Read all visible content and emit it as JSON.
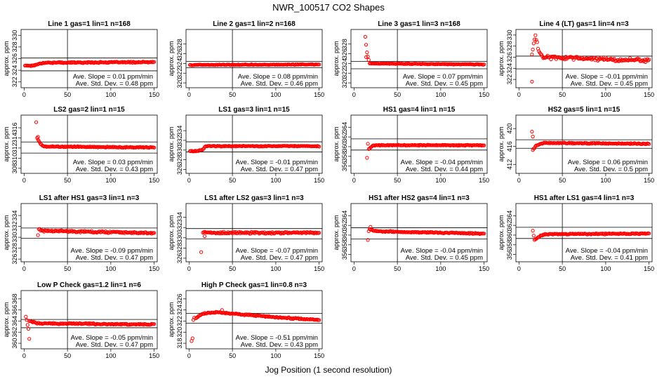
{
  "figure": {
    "title": "NWR_100517  CO2 Shapes",
    "xlabel": "Jog Position (1 second resolution)"
  },
  "colors": {
    "points": "#ff0000",
    "axis": "#000000"
  },
  "chart_data": [
    {
      "type": "scatter",
      "title": "Line 1 gas=1 lin=1 n=168",
      "ylabel": "approx. ppm",
      "xlim": [
        0,
        150
      ],
      "ylim": [
        321,
        331
      ],
      "xticks": [
        0,
        50,
        100,
        150
      ],
      "yticks": [
        322,
        324,
        326,
        328,
        330
      ],
      "hlines": [
        326.1,
        323.9
      ],
      "vline": 50,
      "slope_text": "Ave. Slope =  0.01  ppm/min",
      "std_text": "Ave. Std. Dev. =  0.48  ppm",
      "shape": {
        "start": 1,
        "start_val": 324.8,
        "segments": [
          [
            10,
            324.8
          ],
          [
            22,
            325.3
          ],
          [
            150,
            325.4
          ]
        ],
        "noise": 0.12
      },
      "outliers": []
    },
    {
      "type": "scatter",
      "title": "Line 2 gas=1 lin=2 n=168",
      "ylabel": "approx. ppm",
      "xlim": [
        0,
        150
      ],
      "ylim": [
        319,
        331
      ],
      "xticks": [
        0,
        50,
        100,
        150
      ],
      "yticks": [
        320,
        322,
        324,
        326,
        328
      ],
      "hlines": [
        324.4,
        323.1
      ],
      "vline": 50,
      "slope_text": "Ave. Slope =  0.08  ppm/min",
      "std_text": "Ave. Std. Dev. =  0.46  ppm",
      "shape": {
        "start": 1,
        "start_val": 323.7,
        "segments": [
          [
            150,
            323.8
          ]
        ],
        "noise": 0.1
      },
      "outliers": []
    },
    {
      "type": "scatter",
      "title": "Line 3 gas=1 lin=3 n=168",
      "ylabel": "approx. ppm",
      "xlim": [
        0,
        150
      ],
      "ylim": [
        319,
        331
      ],
      "xticks": [
        0,
        50,
        100,
        150
      ],
      "yticks": [
        320,
        322,
        324,
        326,
        328
      ],
      "hlines": [
        324.4,
        322.9
      ],
      "vline": 50,
      "slope_text": "Ave. Slope =  0.07  ppm/min",
      "std_text": "Ave. Std. Dev. =  0.45  ppm",
      "shape": {
        "start": 13,
        "start_val": 329.5,
        "segments": [
          [
            15,
            326.2
          ],
          [
            18,
            324.0
          ],
          [
            150,
            323.8
          ]
        ],
        "noise": 0.1
      },
      "outliers": [
        [
          14,
          325.3
        ]
      ]
    },
    {
      "type": "scatter",
      "title": "Line 4 (LT) gas=1 lin=4 n=3",
      "ylabel": "approx. ppm",
      "xlim": [
        0,
        150
      ],
      "ylim": [
        320.5,
        331
      ],
      "xticks": [
        0,
        50,
        100,
        150
      ],
      "yticks": [
        322,
        324,
        326,
        328,
        330
      ],
      "hlines": [
        326.2,
        323.9
      ],
      "vline": 50,
      "slope_text": "Ave. Slope =  -0.01  ppm/min",
      "std_text": "Ave. Std. Dev. =  0.45  ppm",
      "shape": {
        "start": 15,
        "start_val": 326.5,
        "segments": [
          [
            19,
            330.2
          ],
          [
            23,
            327.0
          ],
          [
            28,
            326.0
          ],
          [
            150,
            325.4
          ]
        ],
        "noise": 0.35
      },
      "outliers": [
        [
          15,
          321.6
        ]
      ]
    },
    {
      "type": "scatter",
      "title": "LS2 gas=2 lin=1 n=15",
      "ylabel": "approx. ppm",
      "xlim": [
        0,
        150
      ],
      "ylim": [
        307,
        318.5
      ],
      "xticks": [
        0,
        50,
        100,
        150
      ],
      "yticks": [
        308,
        310,
        312,
        314,
        316
      ],
      "hlines": [
        313.2,
        311.0
      ],
      "vline": 50,
      "slope_text": "Ave. Slope =  0.03  ppm/min",
      "std_text": "Ave. Std. Dev. =  0.43  ppm",
      "shape": {
        "start": 15,
        "start_val": 314.0,
        "segments": [
          [
            19,
            312.8
          ],
          [
            23,
            312.3
          ],
          [
            150,
            312.1
          ]
        ],
        "noise": 0.12
      },
      "outliers": [
        [
          14,
          317.1
        ],
        [
          16,
          314.2
        ]
      ]
    },
    {
      "type": "scatter",
      "title": "LS1 gas=3 lin=1 n=15",
      "ylabel": "approx. ppm",
      "xlim": [
        0,
        150
      ],
      "ylim": [
        325.2,
        337.2
      ],
      "xticks": [
        0,
        50,
        100,
        150
      ],
      "yticks": [
        326,
        328,
        330,
        332,
        334
      ],
      "hlines": [
        331.7,
        329.6
      ],
      "vline": 50,
      "slope_text": "Ave. Slope =  -0.01  ppm/min",
      "std_text": "Ave. Std. Dev. =  0.47  ppm",
      "shape": {
        "start": 1,
        "start_val": 329.8,
        "segments": [
          [
            10,
            329.8
          ],
          [
            16,
            330.1
          ],
          [
            19,
            330.8
          ],
          [
            150,
            330.8
          ]
        ],
        "noise": 0.12
      },
      "outliers": []
    },
    {
      "type": "scatter",
      "title": "HS1 gas=4 lin=1 n=15",
      "ylabel": "approx. ppm",
      "xlim": [
        0,
        150
      ],
      "ylim": [
        354.5,
        366.5
      ],
      "xticks": [
        0,
        50,
        100,
        150
      ],
      "yticks": [
        356,
        358,
        360,
        362,
        364
      ],
      "hlines": [
        361.6,
        359.3
      ],
      "vline": 50,
      "slope_text": "Ave. Slope =  -0.04  ppm/min",
      "std_text": "Ave. Std. Dev. =  0.44  ppm",
      "shape": {
        "start": 17,
        "start_val": 359.5,
        "segments": [
          [
            22,
            360.3
          ],
          [
            150,
            360.3
          ]
        ],
        "noise": 0.12
      },
      "outliers": [
        [
          15,
          357.7
        ],
        [
          16,
          360.6
        ]
      ]
    },
    {
      "type": "scatter",
      "title": "HS2 gas=5 lin=1 n=15",
      "ylabel": "approx. ppm",
      "xlim": [
        0,
        150
      ],
      "ylim": [
        410,
        423
      ],
      "xticks": [
        0,
        50,
        100,
        150
      ],
      "yticks": [
        412,
        416,
        420
      ],
      "hlines": [
        417.5,
        415.6
      ],
      "vline": 50,
      "slope_text": "Ave. Slope =  0.06  ppm/min",
      "std_text": "Ave. Std. Dev. =  0.5  ppm",
      "shape": {
        "start": 16,
        "start_val": 415.2,
        "segments": [
          [
            20,
            416.2
          ],
          [
            28,
            416.8
          ],
          [
            150,
            416.6
          ]
        ],
        "noise": 0.14
      },
      "outliers": [
        [
          15,
          419.3
        ],
        [
          16,
          418.2
        ]
      ]
    },
    {
      "type": "scatter",
      "title": "LS1 after HS1 gas=3 lin=1 n=3",
      "ylabel": "approx. ppm",
      "xlim": [
        0,
        150
      ],
      "ylim": [
        325.5,
        336.2
      ],
      "xticks": [
        0,
        50,
        100,
        150
      ],
      "yticks": [
        326,
        328,
        330,
        332,
        334
      ],
      "hlines": [
        331.7,
        329.8
      ],
      "vline": 50,
      "slope_text": "Ave. Slope =  -0.09  ppm/min",
      "std_text": "Ave. Std. Dev. =  0.47  ppm",
      "shape": {
        "start": 17,
        "start_val": 331.5,
        "segments": [
          [
            22,
            331.2
          ],
          [
            150,
            330.8
          ]
        ],
        "noise": 0.18
      },
      "outliers": [
        [
          16,
          330.4
        ]
      ]
    },
    {
      "type": "scatter",
      "title": "LS1 after LS2 gas=3 lin=1 n=3",
      "ylabel": "approx. ppm",
      "xlim": [
        0,
        150
      ],
      "ylim": [
        325.3,
        336.7
      ],
      "xticks": [
        0,
        50,
        100,
        150
      ],
      "yticks": [
        326,
        328,
        330,
        332,
        334
      ],
      "hlines": [
        331.8,
        329.8
      ],
      "vline": 50,
      "slope_text": "Ave. Slope =  -0.07  ppm/min",
      "std_text": "Ave. Std. Dev. =  0.47  ppm",
      "shape": {
        "start": 16,
        "start_val": 331.0,
        "segments": [
          [
            150,
            331.0
          ]
        ],
        "noise": 0.25
      },
      "outliers": [
        [
          14,
          327.2
        ],
        [
          18,
          330.3
        ]
      ]
    },
    {
      "type": "scatter",
      "title": "HS1 after HS2 gas=4 lin=1 n=3",
      "ylabel": "approx. ppm",
      "xlim": [
        0,
        150
      ],
      "ylim": [
        354.5,
        366.5
      ],
      "xticks": [
        0,
        50,
        100,
        150
      ],
      "yticks": [
        356,
        358,
        360,
        362,
        364
      ],
      "hlines": [
        361.5,
        359.2
      ],
      "vline": 50,
      "slope_text": "Ave. Slope =  -0.04  ppm/min",
      "std_text": "Ave. Std. Dev. =  0.45  ppm",
      "shape": {
        "start": 18,
        "start_val": 361.2,
        "segments": [
          [
            24,
            360.8
          ],
          [
            150,
            360.3
          ]
        ],
        "noise": 0.15
      },
      "outliers": [
        [
          16,
          359.0
        ],
        [
          17,
          360.8
        ],
        [
          19,
          361.7
        ]
      ]
    },
    {
      "type": "scatter",
      "title": "HS1 after LS1 gas=4 lin=1 n=3",
      "ylabel": "approx. ppm",
      "xlim": [
        0,
        150
      ],
      "ylim": [
        354.5,
        366.5
      ],
      "xticks": [
        0,
        50,
        100,
        150
      ],
      "yticks": [
        356,
        358,
        360,
        362,
        364
      ],
      "hlines": [
        361.6,
        359.3
      ],
      "vline": 50,
      "slope_text": "Ave. Slope =  -0.04  ppm/min",
      "std_text": "Ave. Std. Dev. =  0.41  ppm",
      "shape": {
        "start": 18,
        "start_val": 359.0,
        "segments": [
          [
            24,
            359.8
          ],
          [
            30,
            360.2
          ],
          [
            150,
            360.3
          ]
        ],
        "noise": 0.14
      },
      "outliers": [
        [
          16,
          360.9
        ],
        [
          17,
          359.9
        ]
      ]
    },
    {
      "type": "scatter",
      "title": "Low P Check gas=1.2 lin=1 n=6",
      "ylabel": "approx. ppm",
      "xlim": [
        0,
        150
      ],
      "ylim": [
        359,
        369.5
      ],
      "xticks": [
        0,
        50,
        100,
        150
      ],
      "yticks": [
        360,
        362,
        364,
        366,
        368
      ],
      "hlines": [
        364.3,
        362.8
      ],
      "vline": 50,
      "slope_text": "Ave. Slope =  -0.05  ppm/min",
      "std_text": "Ave. Std. Dev. =  0.47  ppm",
      "shape": {
        "start": 6,
        "start_val": 364.0,
        "segments": [
          [
            15,
            363.6
          ],
          [
            150,
            363.4
          ]
        ],
        "noise": 0.15
      },
      "outliers": [
        [
          2,
          364.8
        ],
        [
          3,
          364.2
        ],
        [
          4,
          363.3
        ],
        [
          5,
          362.6
        ],
        [
          6,
          360.8
        ]
      ]
    },
    {
      "type": "scatter",
      "title": "High P Check gas=1 lin=0.8 n=3",
      "ylabel": "approx. ppm",
      "xlim": [
        0,
        150
      ],
      "ylim": [
        317,
        327.5
      ],
      "xticks": [
        0,
        50,
        100,
        150
      ],
      "yticks": [
        318,
        320,
        322,
        324,
        326
      ],
      "hlines": [
        323.4,
        321.6
      ],
      "vline": 50,
      "slope_text": "Ave. Slope =  -0.51  ppm/min",
      "std_text": "Ave. Std. Dev. =  0.43  ppm",
      "shape": {
        "start": 8,
        "start_val": 322.5,
        "segments": [
          [
            15,
            323.3
          ],
          [
            30,
            323.6
          ],
          [
            55,
            323.3
          ],
          [
            100,
            322.7
          ],
          [
            150,
            322.2
          ]
        ],
        "noise": 0.14
      },
      "outliers": [
        [
          3,
          318.4
        ],
        [
          4,
          318.9
        ],
        [
          5,
          322.2
        ],
        [
          6,
          322.6
        ],
        [
          38,
          324.0
        ]
      ]
    }
  ]
}
